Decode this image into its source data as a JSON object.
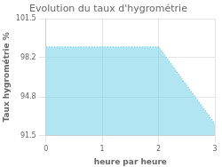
{
  "chart_data": {
    "type": "area",
    "title": "Evolution du taux d'hygrométrie",
    "xlabel": "heure par heure",
    "ylabel": "Taux hygrométrie %",
    "x": [
      0,
      1,
      2,
      3
    ],
    "values": [
      99.1,
      99.1,
      99.1,
      92.5
    ],
    "xlim": [
      0,
      3
    ],
    "ylim": [
      91.5,
      101.5
    ],
    "xticks": [
      0,
      1,
      2,
      3
    ],
    "yticks": [
      91.5,
      94.8,
      98.2,
      101.5
    ],
    "grid": true,
    "color": "#7dd4ea",
    "line_style": "dotted"
  }
}
